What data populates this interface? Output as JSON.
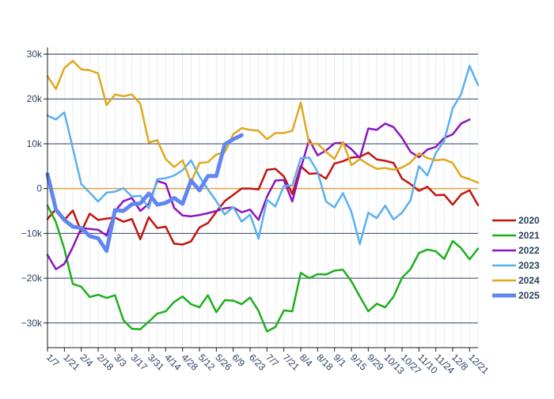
{
  "chart_data": {
    "type": "line",
    "title": "",
    "xlabel": "",
    "ylabel": "",
    "x_start": "1/7",
    "x_step_days": 7,
    "x_tick_labels": [
      "1/7",
      "1/21",
      "2/4",
      "2/18",
      "3/3",
      "3/17",
      "3/31",
      "4/14",
      "4/28",
      "5/12",
      "5/26",
      "6/9",
      "6/23",
      "7/7",
      "7/21",
      "8/4",
      "8/18",
      "9/1",
      "9/15",
      "9/29",
      "10/13",
      "10/27",
      "11/10",
      "11/24",
      "12/8",
      "12/21"
    ],
    "y_tick_labels": [
      "−30k",
      "−20k",
      "−10k",
      "0",
      "10k",
      "20k",
      "30k"
    ],
    "y_tick_values": [
      -30000,
      -20000,
      -10000,
      0,
      10000,
      20000,
      30000
    ],
    "ylim": [
      -35500,
      31500
    ],
    "grid": true,
    "zero_line_color": "#e8a040",
    "legend": {
      "position": "right"
    },
    "series": [
      {
        "name": "2020",
        "color": "#c0150f",
        "width": 2.5,
        "values": [
          -6800,
          -4600,
          -7000,
          -4900,
          -9600,
          -5600,
          -7000,
          -6700,
          -6500,
          -7400,
          -6800,
          -11300,
          -6400,
          -8800,
          -8500,
          -12300,
          -12500,
          -11800,
          -8700,
          -7700,
          -5200,
          -2800,
          -1400,
          0,
          0,
          -200,
          4200,
          4400,
          2700,
          -1200,
          5000,
          3300,
          3400,
          2200,
          5600,
          6100,
          6900,
          7100,
          8000,
          6500,
          6200,
          5700,
          2200,
          1000,
          -500,
          400,
          -1500,
          -1400,
          -3600,
          -1300,
          -400,
          -3700
        ]
      },
      {
        "name": "2021",
        "color": "#1cb01c",
        "width": 2.5,
        "values": [
          -3800,
          -7500,
          -13500,
          -21300,
          -21900,
          -24200,
          -23700,
          -24400,
          -23800,
          -29400,
          -31300,
          -31400,
          -29700,
          -27900,
          -27400,
          -25300,
          -24100,
          -25800,
          -26500,
          -23800,
          -27600,
          -24900,
          -25000,
          -25800,
          -24300,
          -27300,
          -31900,
          -30900,
          -27200,
          -27400,
          -18800,
          -20000,
          -19100,
          -19200,
          -18300,
          -18100,
          -20700,
          -24100,
          -27400,
          -25700,
          -26500,
          -24100,
          -19900,
          -18000,
          -14400,
          -13600,
          -14000,
          -15700,
          -11700,
          -13300,
          -15800,
          -13400
        ]
      },
      {
        "name": "2022",
        "color": "#8c15be",
        "width": 2.5,
        "values": [
          -14800,
          -18000,
          -16800,
          -13100,
          -8800,
          -9000,
          -9200,
          -10500,
          -5000,
          -2800,
          -2100,
          -5000,
          -3400,
          1700,
          1100,
          -4300,
          -6000,
          -6200,
          -5900,
          -5500,
          -5000,
          -4400,
          -4200,
          -5300,
          -4700,
          -7000,
          -1800,
          1800,
          1900,
          -2900,
          4500,
          10900,
          7400,
          8500,
          10100,
          10200,
          8800,
          6800,
          13400,
          13100,
          14500,
          13700,
          11300,
          8200,
          7000,
          8700,
          9300,
          11300,
          12100,
          14500,
          15400
        ]
      },
      {
        "name": "2023",
        "color": "#5ab0f0",
        "width": 2.5,
        "values": [
          16300,
          15400,
          17000,
          9000,
          1000,
          -900,
          -2900,
          -900,
          -700,
          100,
          -1800,
          -1600,
          -4400,
          2100,
          2300,
          2900,
          4100,
          6300,
          2700,
          -200,
          -2800,
          -5800,
          -4100,
          -7400,
          -5800,
          -11200,
          -2500,
          -4000,
          600,
          700,
          6800,
          6900,
          3700,
          -2900,
          -4200,
          -1000,
          -5200,
          -12400,
          -5400,
          -6600,
          -3800,
          -6900,
          -5400,
          -2600,
          5000,
          2900,
          7900,
          10700,
          17900,
          21100,
          27400,
          23100
        ]
      },
      {
        "name": "2024",
        "color": "#e0a81c",
        "width": 2.5,
        "values": [
          25100,
          22200,
          26900,
          28500,
          26600,
          26400,
          25700,
          18600,
          21000,
          20600,
          21000,
          18900,
          10300,
          10800,
          6600,
          4800,
          6300,
          1400,
          5700,
          5900,
          7600,
          8100,
          12100,
          13500,
          13100,
          12900,
          11000,
          12400,
          12400,
          12900,
          19200,
          10000,
          10000,
          8200,
          6600,
          10400,
          5200,
          6600,
          5400,
          4400,
          4600,
          4200,
          4700,
          5800,
          7900,
          6800,
          6300,
          6500,
          5700,
          2700,
          2100,
          1300
        ]
      },
      {
        "name": "2025",
        "color": "#6186f0",
        "width": 5,
        "values": [
          3200,
          -4700,
          -7000,
          -8500,
          -8800,
          -10600,
          -11100,
          -13900,
          -4800,
          -5000,
          -3500,
          -3300,
          -1100,
          -3600,
          -3200,
          -2100,
          -3400,
          1800,
          -400,
          2800,
          2800,
          9900,
          11000,
          11900
        ]
      }
    ]
  }
}
